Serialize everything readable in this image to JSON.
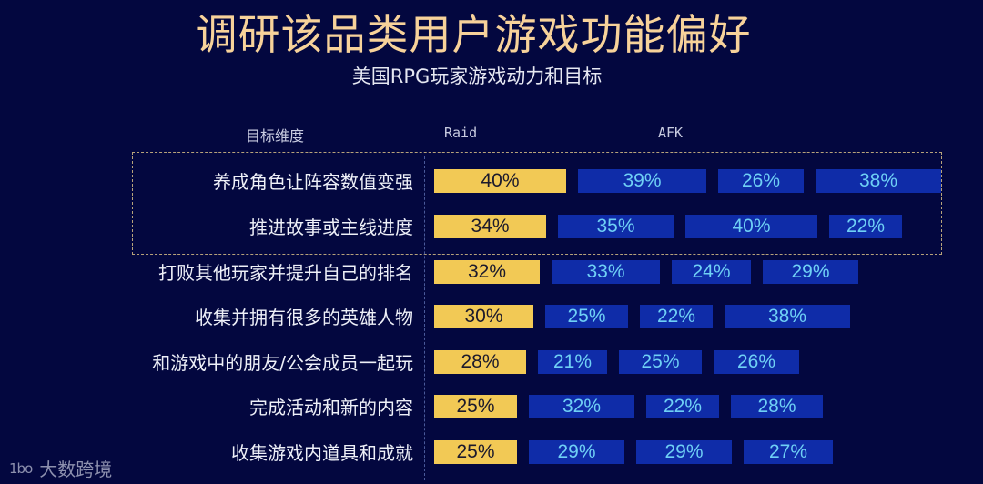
{
  "header": {
    "title": "调研该品类用户游戏功能偏好",
    "subtitle": "美国RPG玩家游戏动力和目标"
  },
  "columns": {
    "dimension": "目标维度",
    "raid": "Raid",
    "afk": "AFK"
  },
  "footer": {
    "logo_mark": "1bo",
    "logo_text": "大数跨境"
  },
  "colors": {
    "background": "#03073f",
    "title": "#f7d29a",
    "raid_bar": "#f2c955",
    "afk_bar": "#0f2ca8",
    "afk_text": "#6fd0f5",
    "highlight_border": "#b7a27a"
  },
  "chart_data": {
    "type": "table",
    "title": "调研该品类用户游戏功能偏好",
    "subtitle": "美国RPG玩家游戏动力和目标",
    "row_header": "目标维度",
    "series_headers": [
      "Raid",
      "AFK"
    ],
    "note": "Each row shows one Raid bar (yellow) followed by three AFK-related bars (blue); bar widths proportional to percentage. First two rows highlighted by dashed box.",
    "highlighted_rows": [
      0,
      1
    ],
    "rows": [
      {
        "label": "养成角色让阵容数值变强",
        "raid": "40%",
        "afk": [
          "39%",
          "26%",
          "38%"
        ],
        "raid_value": 40,
        "afk_values": [
          39,
          26,
          38
        ]
      },
      {
        "label": "推进故事或主线进度",
        "raid": "34%",
        "afk": [
          "35%",
          "40%",
          "22%"
        ],
        "raid_value": 34,
        "afk_values": [
          35,
          40,
          22
        ]
      },
      {
        "label": "打败其他玩家并提升自己的排名",
        "raid": "32%",
        "afk": [
          "33%",
          "24%",
          "29%"
        ],
        "raid_value": 32,
        "afk_values": [
          33,
          24,
          29
        ]
      },
      {
        "label": "收集并拥有很多的英雄人物",
        "raid": "30%",
        "afk": [
          "25%",
          "22%",
          "38%"
        ],
        "raid_value": 30,
        "afk_values": [
          25,
          22,
          38
        ]
      },
      {
        "label": "和游戏中的朋友/公会成员一起玩",
        "raid": "28%",
        "afk": [
          "21%",
          "25%",
          "26%"
        ],
        "raid_value": 28,
        "afk_values": [
          21,
          25,
          26
        ]
      },
      {
        "label": "完成活动和新的内容",
        "raid": "25%",
        "afk": [
          "32%",
          "22%",
          "28%"
        ],
        "raid_value": 25,
        "afk_values": [
          32,
          22,
          28
        ]
      },
      {
        "label": "收集游戏内道具和成就",
        "raid": "25%",
        "afk": [
          "29%",
          "29%",
          "27%"
        ],
        "raid_value": 25,
        "afk_values": [
          29,
          29,
          27
        ]
      }
    ]
  }
}
